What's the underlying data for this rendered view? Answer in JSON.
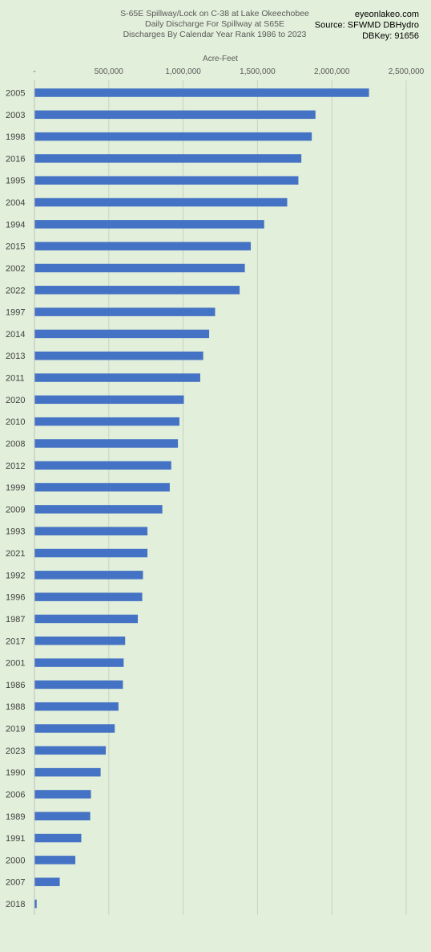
{
  "header": {
    "title_lines": [
      "S-65E Spillway/Lock on C-38 at Lake Okeechobee",
      "Daily Discharge For Spillway at S65E",
      "Discharges By Calendar Year Rank 1986 to 2023"
    ],
    "source_lines": [
      "eyeonlakeo.com",
      "Source: SFWMD DBHydro",
      "DBKey: 91656"
    ]
  },
  "chart_data": {
    "type": "bar",
    "orientation": "horizontal",
    "xlabel": "Acre-Feet",
    "xlim": [
      0,
      2500000
    ],
    "x_ticks": [
      0,
      500000,
      1000000,
      1500000,
      2000000,
      2500000
    ],
    "x_tick_labels": [
      "-",
      "500,000",
      "1,000,000",
      "1,500,000",
      "2,000,000",
      "2,500,000"
    ],
    "grid": true,
    "bar_color": "#4472c4",
    "categories": [
      "2005",
      "2003",
      "1998",
      "2016",
      "1995",
      "2004",
      "1994",
      "2015",
      "2002",
      "2022",
      "1997",
      "2014",
      "2013",
      "2011",
      "2020",
      "2010",
      "2008",
      "2012",
      "1999",
      "2009",
      "1993",
      "2021",
      "1992",
      "1996",
      "1987",
      "2017",
      "2001",
      "1986",
      "1988",
      "2019",
      "2023",
      "1990",
      "2006",
      "1989",
      "1991",
      "2000",
      "2007",
      "2018"
    ],
    "values": [
      2250000,
      1890000,
      1865000,
      1795000,
      1775000,
      1700000,
      1545000,
      1455000,
      1415000,
      1380000,
      1215000,
      1175000,
      1135000,
      1115000,
      1005000,
      975000,
      965000,
      920000,
      910000,
      860000,
      760000,
      760000,
      730000,
      725000,
      695000,
      610000,
      600000,
      595000,
      565000,
      540000,
      480000,
      445000,
      380000,
      375000,
      315000,
      275000,
      170000,
      15000
    ]
  }
}
